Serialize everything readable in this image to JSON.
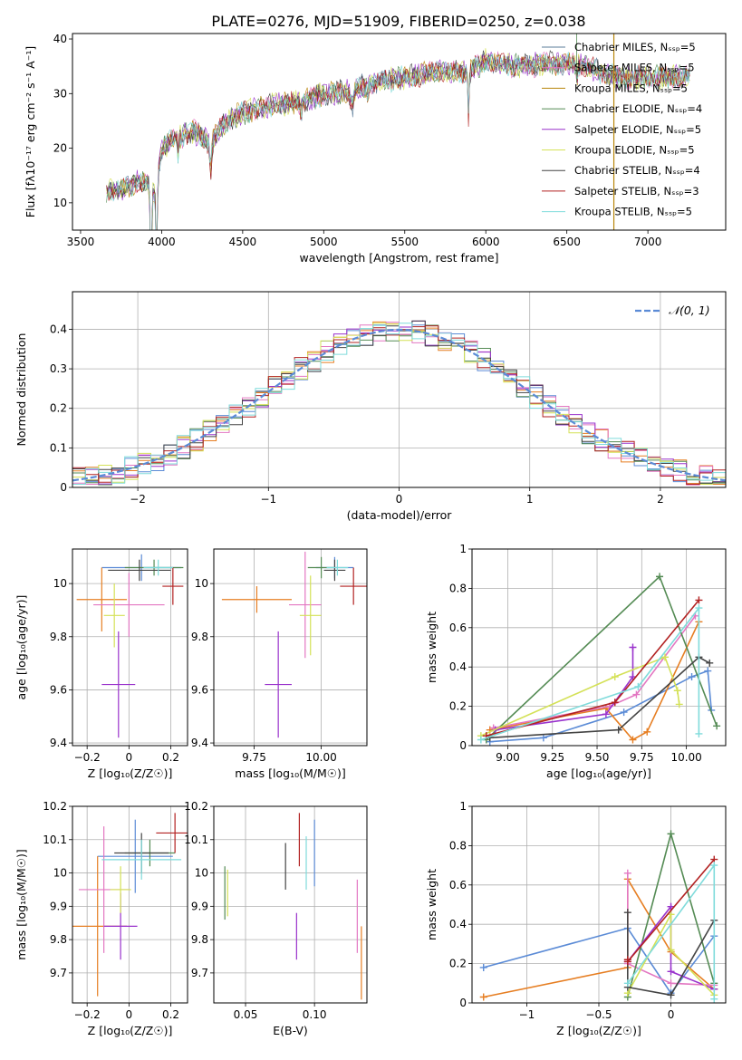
{
  "figure": {
    "title": "PLATE=0276, MJD=51909, FIBERID=0250, z=0.038"
  },
  "chart_data": [
    {
      "id": "spectrum",
      "type": "line",
      "xlabel": "wavelength [Angstrom, rest frame]",
      "ylabel": "Flux [fλ10⁻¹⁷ erg cm⁻² s⁻¹ A⁻¹]",
      "xlim": [
        3450,
        7480
      ],
      "ylim": [
        5,
        41
      ],
      "xticks": [
        3500,
        4000,
        4500,
        5000,
        5500,
        6000,
        6500,
        7000
      ],
      "yticks": [
        10,
        20,
        30,
        40
      ],
      "grid": false,
      "legend": "top-right",
      "x_range": [
        3660,
        7260
      ],
      "anchors": [
        [
          3660,
          12
        ],
        [
          3760,
          12.5
        ],
        [
          3860,
          14
        ],
        [
          3930,
          13
        ],
        [
          3960,
          11
        ],
        [
          4000,
          20
        ],
        [
          4100,
          22
        ],
        [
          4200,
          23
        ],
        [
          4300,
          21
        ],
        [
          4400,
          25
        ],
        [
          4500,
          26.5
        ],
        [
          4700,
          28
        ],
        [
          4861,
          28.5
        ],
        [
          5000,
          30
        ],
        [
          5175,
          30.5
        ],
        [
          5300,
          32
        ],
        [
          5500,
          33
        ],
        [
          5700,
          34
        ],
        [
          5893,
          34
        ],
        [
          6000,
          36
        ],
        [
          6200,
          35
        ],
        [
          6400,
          35.5
        ],
        [
          6563,
          35.5
        ],
        [
          6800,
          33
        ],
        [
          7000,
          33
        ],
        [
          7260,
          33
        ]
      ],
      "series": [
        {
          "name": "Chabrier MILES, N_SSP=5",
          "color": "#5b7c99"
        },
        {
          "name": "Salpeter MILES, N_SSP=5",
          "color": "#e377c2"
        },
        {
          "name": "Kroupa MILES, N_SSP=5",
          "color": "#b8860b"
        },
        {
          "name": "Chabrier ELODIE, N_SSP=4",
          "color": "#548b54"
        },
        {
          "name": "Salpeter ELODIE, N_SSP=5",
          "color": "#9932cc"
        },
        {
          "name": "Kroupa ELODIE, N_SSP=5",
          "color": "#d4e157"
        },
        {
          "name": "Chabrier STELIB, N_SSP=4",
          "color": "#444444"
        },
        {
          "name": "Salpeter STELIB, N_SSP=3",
          "color": "#b22222"
        },
        {
          "name": "Kroupa STELIB, N_SSP=5",
          "color": "#7fdbdb"
        }
      ]
    },
    {
      "id": "residuals",
      "type": "histogram",
      "xlabel": "(data-model)/error",
      "ylabel": "Normed distribution",
      "xlim": [
        -2.5,
        2.5
      ],
      "ylim": [
        0,
        0.495
      ],
      "xticks": [
        -2,
        -1,
        0,
        1,
        2
      ],
      "yticks": [
        0.0,
        0.1,
        0.2,
        0.3,
        0.4
      ],
      "grid": true,
      "legend": "top-right",
      "bins": {
        "start": -2.5,
        "width": 0.1,
        "count": 50
      },
      "reference": {
        "name": "𝒩(0, 1)",
        "color": "#5b8bd6"
      },
      "colors": [
        "#5b8bd6",
        "#e67e22",
        "#e377c2",
        "#548b54",
        "#9932cc",
        "#d4e157",
        "#444444",
        "#b22222",
        "#7fdbdb"
      ]
    },
    {
      "id": "age-vs-z",
      "type": "errorbar",
      "xlabel": "Z [log₁₀(Z/Z☉)]",
      "ylabel": "age  [log₁₀(age/yr)]",
      "xlim": [
        -0.27,
        0.28
      ],
      "ylim": [
        9.39,
        10.13
      ],
      "xticks": [
        -0.2,
        0.0,
        0.2
      ],
      "yticks": [
        9.4,
        9.6,
        9.8,
        10.0
      ],
      "grid": true,
      "points": [
        {
          "x": 0.06,
          "y": 10.06,
          "xerr": 0.19,
          "yerr": 0.05,
          "color": "#5b8bd6"
        },
        {
          "x": -0.13,
          "y": 9.94,
          "xerr": 0.12,
          "yerr": 0.12,
          "color": "#e67e22"
        },
        {
          "x": 0.0,
          "y": 9.92,
          "xerr": 0.17,
          "yerr": 0.12,
          "color": "#e377c2"
        },
        {
          "x": 0.12,
          "y": 10.06,
          "xerr": 0.14,
          "yerr": 0.03,
          "color": "#548b54"
        },
        {
          "x": -0.05,
          "y": 9.62,
          "xerr": 0.08,
          "yerr": 0.2,
          "color": "#9932cc"
        },
        {
          "x": -0.07,
          "y": 9.88,
          "xerr": 0.05,
          "yerr": 0.12,
          "color": "#d4e157"
        },
        {
          "x": 0.05,
          "y": 10.05,
          "xerr": 0.15,
          "yerr": 0.04,
          "color": "#444444"
        },
        {
          "x": 0.21,
          "y": 9.99,
          "xerr": 0.05,
          "yerr": 0.07,
          "color": "#b22222"
        },
        {
          "x": 0.14,
          "y": 10.06,
          "xerr": 0.07,
          "yerr": 0.03,
          "color": "#7fdbdb"
        }
      ]
    },
    {
      "id": "age-vs-mass",
      "type": "errorbar",
      "xlabel": "mass [log₁₀(M/M☉)]",
      "ylabel": "",
      "xlim": [
        9.6,
        10.17
      ],
      "ylim": [
        9.39,
        10.13
      ],
      "xticks": [
        9.75,
        10.0
      ],
      "xticklabels": [
        "9.75",
        "10.00"
      ],
      "yticks": [
        9.4,
        9.6,
        9.8,
        10.0
      ],
      "grid": true,
      "points": [
        {
          "x": 10.05,
          "y": 10.06,
          "xerr": 0.07,
          "yerr": 0.04,
          "color": "#5b8bd6"
        },
        {
          "x": 9.76,
          "y": 9.94,
          "xerr": 0.13,
          "yerr": 0.05,
          "color": "#e67e22"
        },
        {
          "x": 9.94,
          "y": 9.92,
          "xerr": 0.06,
          "yerr": 0.2,
          "color": "#e377c2"
        },
        {
          "x": 10.0,
          "y": 10.06,
          "xerr": 0.05,
          "yerr": 0.04,
          "color": "#548b54"
        },
        {
          "x": 9.84,
          "y": 9.62,
          "xerr": 0.05,
          "yerr": 0.2,
          "color": "#9932cc"
        },
        {
          "x": 9.96,
          "y": 9.88,
          "xerr": 0.04,
          "yerr": 0.15,
          "color": "#d4e157"
        },
        {
          "x": 10.05,
          "y": 10.05,
          "xerr": 0.04,
          "yerr": 0.04,
          "color": "#444444"
        },
        {
          "x": 10.12,
          "y": 9.99,
          "xerr": 0.05,
          "yerr": 0.07,
          "color": "#b22222"
        },
        {
          "x": 10.06,
          "y": 10.06,
          "xerr": 0.04,
          "yerr": 0.03,
          "color": "#7fdbdb"
        }
      ]
    },
    {
      "id": "weights-vs-age",
      "type": "line",
      "xlabel": "age  [log₁₀(age/yr)]",
      "ylabel": "mass weight",
      "xlim": [
        8.8,
        10.22
      ],
      "ylim": [
        0,
        1.0
      ],
      "xticks": [
        9.0,
        9.25,
        9.5,
        9.75,
        10.0
      ],
      "xticklabels": [
        "9.00",
        "9.25",
        "9.50",
        "9.75",
        "10.00"
      ],
      "yticks": [
        0.0,
        0.2,
        0.4,
        0.6,
        0.8,
        1.0
      ],
      "grid": true,
      "series": [
        {
          "color": "#5b8bd6",
          "points": [
            [
              8.9,
              0.02
            ],
            [
              9.2,
              0.04
            ],
            [
              9.65,
              0.17
            ],
            [
              10.03,
              0.35
            ],
            [
              10.12,
              0.38
            ],
            [
              10.14,
              0.18
            ]
          ]
        },
        {
          "color": "#e67e22",
          "points": [
            [
              8.9,
              0.08
            ],
            [
              9.55,
              0.19
            ],
            [
              9.7,
              0.03
            ],
            [
              9.78,
              0.07
            ],
            [
              10.07,
              0.63
            ]
          ]
        },
        {
          "color": "#e377c2",
          "points": [
            [
              8.92,
              0.09
            ],
            [
              9.57,
              0.2
            ],
            [
              9.72,
              0.26
            ],
            [
              10.05,
              0.66
            ]
          ]
        },
        {
          "color": "#548b54",
          "points": [
            [
              8.88,
              0.03
            ],
            [
              9.85,
              0.86
            ],
            [
              10.17,
              0.1
            ]
          ]
        },
        {
          "color": "#9932cc",
          "points": [
            [
              8.93,
              0.08
            ],
            [
              9.55,
              0.16
            ],
            [
              9.7,
              0.35
            ],
            [
              9.7,
              0.5
            ]
          ]
        },
        {
          "color": "#d4e157",
          "points": [
            [
              8.85,
              0.05
            ],
            [
              9.6,
              0.35
            ],
            [
              9.88,
              0.45
            ],
            [
              9.95,
              0.28
            ],
            [
              9.96,
              0.21
            ]
          ]
        },
        {
          "color": "#444444",
          "points": [
            [
              8.9,
              0.04
            ],
            [
              9.62,
              0.08
            ],
            [
              10.07,
              0.45
            ],
            [
              10.13,
              0.42
            ]
          ]
        },
        {
          "color": "#b22222",
          "points": [
            [
              8.88,
              0.05
            ],
            [
              9.6,
              0.22
            ],
            [
              10.07,
              0.74
            ]
          ]
        },
        {
          "color": "#7fdbdb",
          "points": [
            [
              8.85,
              0.03
            ],
            [
              9.73,
              0.3
            ],
            [
              10.07,
              0.7
            ],
            [
              10.07,
              0.06
            ]
          ]
        }
      ]
    },
    {
      "id": "mass-vs-z",
      "type": "errorbar",
      "xlabel": "Z [log₁₀(Z/Z☉)]",
      "ylabel": "mass [log₁₀(M/M☉)]",
      "xlim": [
        -0.27,
        0.28
      ],
      "ylim": [
        9.61,
        10.2
      ],
      "xticks": [
        -0.2,
        0.0,
        0.2
      ],
      "yticks": [
        9.7,
        9.8,
        9.9,
        10.0,
        10.1,
        10.2
      ],
      "grid": true,
      "points": [
        {
          "x": 0.03,
          "y": 10.05,
          "xerr": 0.18,
          "yerr": 0.11,
          "color": "#5b8bd6"
        },
        {
          "x": -0.15,
          "y": 9.84,
          "xerr": 0.14,
          "yerr": 0.21,
          "color": "#e67e22"
        },
        {
          "x": -0.12,
          "y": 9.95,
          "xerr": 0.12,
          "yerr": 0.19,
          "color": "#e377c2"
        },
        {
          "x": 0.1,
          "y": 10.06,
          "xerr": 0.12,
          "yerr": 0.04,
          "color": "#548b54"
        },
        {
          "x": -0.04,
          "y": 9.84,
          "xerr": 0.08,
          "yerr": 0.1,
          "color": "#9932cc"
        },
        {
          "x": -0.04,
          "y": 9.95,
          "xerr": 0.05,
          "yerr": 0.07,
          "color": "#d4e157"
        },
        {
          "x": 0.06,
          "y": 10.06,
          "xerr": 0.13,
          "yerr": 0.06,
          "color": "#444444"
        },
        {
          "x": 0.22,
          "y": 10.12,
          "xerr": 0.09,
          "yerr": 0.06,
          "color": "#b22222"
        },
        {
          "x": 0.06,
          "y": 10.04,
          "xerr": 0.19,
          "yerr": 0.06,
          "color": "#7fdbdb"
        }
      ]
    },
    {
      "id": "mass-vs-ebv",
      "type": "errorbar",
      "xlabel": "E(B-V)",
      "ylabel": "",
      "xlim": [
        0.027,
        0.138
      ],
      "ylim": [
        9.61,
        10.2
      ],
      "xticks": [
        0.05,
        0.1
      ],
      "xticklabels": [
        "0.05",
        "0.10"
      ],
      "yticks": [
        9.7,
        9.8,
        9.9,
        10.0,
        10.1,
        10.2
      ],
      "grid": true,
      "points": [
        {
          "x": 0.1,
          "y": 10.06,
          "xerr": 0.0,
          "yerr": 0.1,
          "color": "#5b8bd6"
        },
        {
          "x": 0.134,
          "y": 9.73,
          "xerr": 0.0,
          "yerr": 0.11,
          "color": "#e67e22"
        },
        {
          "x": 0.131,
          "y": 9.87,
          "xerr": 0.0,
          "yerr": 0.11,
          "color": "#e377c2"
        },
        {
          "x": 0.035,
          "y": 9.94,
          "xerr": 0.0,
          "yerr": 0.08,
          "color": "#548b54"
        },
        {
          "x": 0.087,
          "y": 9.81,
          "xerr": 0.0,
          "yerr": 0.07,
          "color": "#9932cc"
        },
        {
          "x": 0.037,
          "y": 9.94,
          "xerr": 0.0,
          "yerr": 0.07,
          "color": "#d4e157"
        },
        {
          "x": 0.079,
          "y": 10.02,
          "xerr": 0.0,
          "yerr": 0.07,
          "color": "#444444"
        },
        {
          "x": 0.089,
          "y": 10.1,
          "xerr": 0.0,
          "yerr": 0.08,
          "color": "#b22222"
        },
        {
          "x": 0.094,
          "y": 10.03,
          "xerr": 0.0,
          "yerr": 0.08,
          "color": "#7fdbdb"
        }
      ]
    },
    {
      "id": "weights-vs-z",
      "type": "line",
      "xlabel": "Z [log₁₀(Z/Z☉)]",
      "ylabel": "mass weight",
      "xlim": [
        -1.38,
        0.38
      ],
      "ylim": [
        0,
        1.0
      ],
      "xticks": [
        -1.0,
        -0.5,
        0.0
      ],
      "yticks": [
        0.0,
        0.2,
        0.4,
        0.6,
        0.8,
        1.0
      ],
      "grid": true,
      "series": [
        {
          "color": "#5b8bd6",
          "points": [
            [
              -1.3,
              0.18
            ],
            [
              -0.3,
              0.38
            ],
            [
              0.0,
              0.05
            ],
            [
              0.3,
              0.34
            ]
          ]
        },
        {
          "color": "#e67e22",
          "points": [
            [
              -1.3,
              0.03
            ],
            [
              -0.3,
              0.18
            ],
            [
              -0.3,
              0.63
            ],
            [
              0.0,
              0.26
            ],
            [
              0.3,
              0.07
            ]
          ]
        },
        {
          "color": "#e377c2",
          "points": [
            [
              -0.3,
              0.66
            ],
            [
              -0.3,
              0.2
            ],
            [
              0.0,
              0.1
            ],
            [
              0.3,
              0.09
            ]
          ]
        },
        {
          "color": "#548b54",
          "points": [
            [
              -0.3,
              0.03
            ],
            [
              0.0,
              0.86
            ],
            [
              0.3,
              0.1
            ]
          ]
        },
        {
          "color": "#9932cc",
          "points": [
            [
              -0.3,
              0.21
            ],
            [
              0.0,
              0.49
            ],
            [
              0.0,
              0.16
            ],
            [
              0.3,
              0.07
            ]
          ]
        },
        {
          "color": "#d4e157",
          "points": [
            [
              -0.3,
              0.05
            ],
            [
              0.0,
              0.45
            ],
            [
              0.0,
              0.27
            ],
            [
              0.3,
              0.04
            ]
          ]
        },
        {
          "color": "#444444",
          "points": [
            [
              -0.3,
              0.46
            ],
            [
              -0.3,
              0.08
            ],
            [
              0.0,
              0.04
            ],
            [
              0.3,
              0.42
            ]
          ]
        },
        {
          "color": "#b22222",
          "points": [
            [
              -0.3,
              0.22
            ],
            [
              -0.3,
              0.21
            ],
            [
              0.3,
              0.73
            ]
          ]
        },
        {
          "color": "#7fdbdb",
          "points": [
            [
              -0.3,
              0.1
            ],
            [
              0.3,
              0.7
            ],
            [
              0.3,
              0.02
            ]
          ]
        }
      ]
    }
  ]
}
